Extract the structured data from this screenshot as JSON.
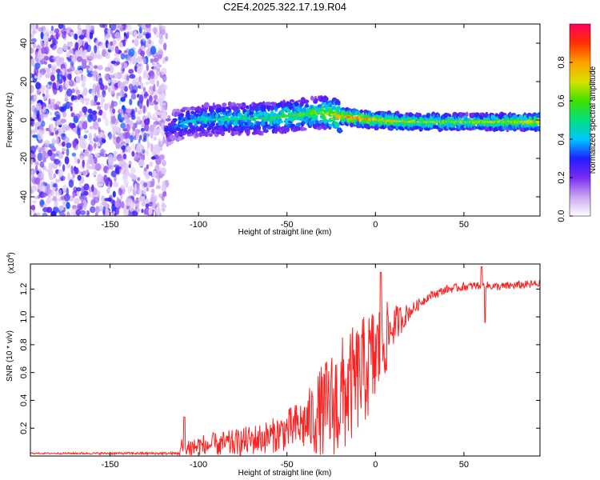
{
  "title": "C2E4.2025.322.17.19.R04",
  "chart_data": [
    {
      "type": "heatmap",
      "name": "spectrogram",
      "xlabel": "Height of straight line (km)",
      "ylabel": "Frequency (Hz)",
      "xlim": [
        -195,
        93
      ],
      "ylim": [
        -50,
        50
      ],
      "xticks": [
        -150,
        -100,
        -50,
        0,
        50
      ],
      "yticks": [
        -40,
        -20,
        0,
        20,
        40
      ],
      "colorbar": {
        "label": "Normalized spectral amplitude",
        "range": [
          0,
          1
        ],
        "ticks": [
          "0.0",
          "0.2",
          "0.4",
          "0.6",
          "0.8"
        ],
        "tick_values": [
          0,
          0.2,
          0.4,
          0.6,
          0.8
        ],
        "colors": [
          "#ffffff",
          "#c9a5f0",
          "#7a2af0",
          "#2020ff",
          "#00c8ff",
          "#00e080",
          "#40e000",
          "#d8e000",
          "#ffa000",
          "#ff3000",
          "#ff0060"
        ]
      },
      "ridge": {
        "x": [
          -118,
          -110,
          -100,
          -80,
          -60,
          -40,
          -30,
          -20,
          -10,
          0,
          20,
          50,
          70,
          93
        ],
        "y": [
          -5,
          -2,
          0,
          0.5,
          1,
          3,
          4,
          2,
          1,
          0,
          -1,
          -1,
          -1,
          -1
        ],
        "peak_amplitude": [
          0.3,
          0.45,
          0.5,
          0.55,
          0.6,
          0.65,
          0.7,
          0.85,
          0.9,
          0.8,
          0.75,
          0.7,
          0.75,
          0.8
        ]
      },
      "noise_region": {
        "x": [
          -195,
          -118
        ],
        "y": [
          -50,
          50
        ],
        "amplitude": [
          0.05,
          0.35
        ]
      }
    },
    {
      "type": "line",
      "name": "snr",
      "xlabel": "Height of straight line (km)",
      "ylabel": "SNR (10 * v/v)",
      "scale_label": "(x10",
      "scale_exponent": "4",
      "scale_suffix": ")",
      "xlim": [
        -195,
        93
      ],
      "ylim": [
        0,
        1.38
      ],
      "xticks": [
        -150,
        -100,
        -50,
        0,
        50
      ],
      "yticks": [
        0.2,
        0.4,
        0.6,
        0.8,
        1.0,
        1.2
      ],
      "ytick_labels": [
        "0.2",
        "0.4",
        "0.6",
        "0.8",
        "1.0",
        "1.2"
      ],
      "color": "#ff2020",
      "envelope": {
        "x": [
          -195,
          -112,
          -110,
          -100,
          -80,
          -60,
          -50,
          -40,
          -30,
          -20,
          -10,
          0,
          5,
          10,
          20,
          30,
          40,
          50,
          60,
          70,
          80,
          93
        ],
        "base": [
          0.02,
          0.02,
          0.05,
          0.08,
          0.1,
          0.15,
          0.2,
          0.25,
          0.35,
          0.45,
          0.6,
          0.75,
          0.85,
          0.95,
          1.05,
          1.15,
          1.2,
          1.22,
          1.23,
          1.22,
          1.23,
          1.24
        ],
        "spread": [
          0.005,
          0.01,
          0.1,
          0.08,
          0.1,
          0.12,
          0.15,
          0.2,
          0.35,
          0.45,
          0.4,
          0.4,
          0.3,
          0.15,
          0.05,
          0.03,
          0.03,
          0.03,
          0.03,
          0.03,
          0.03,
          0.03
        ]
      },
      "spikes": [
        {
          "x": 3,
          "y": 1.32
        },
        {
          "x": 60,
          "y": 1.36
        },
        {
          "x": 62,
          "y": 0.96
        },
        {
          "x": -108,
          "y": 0.28
        }
      ]
    }
  ]
}
